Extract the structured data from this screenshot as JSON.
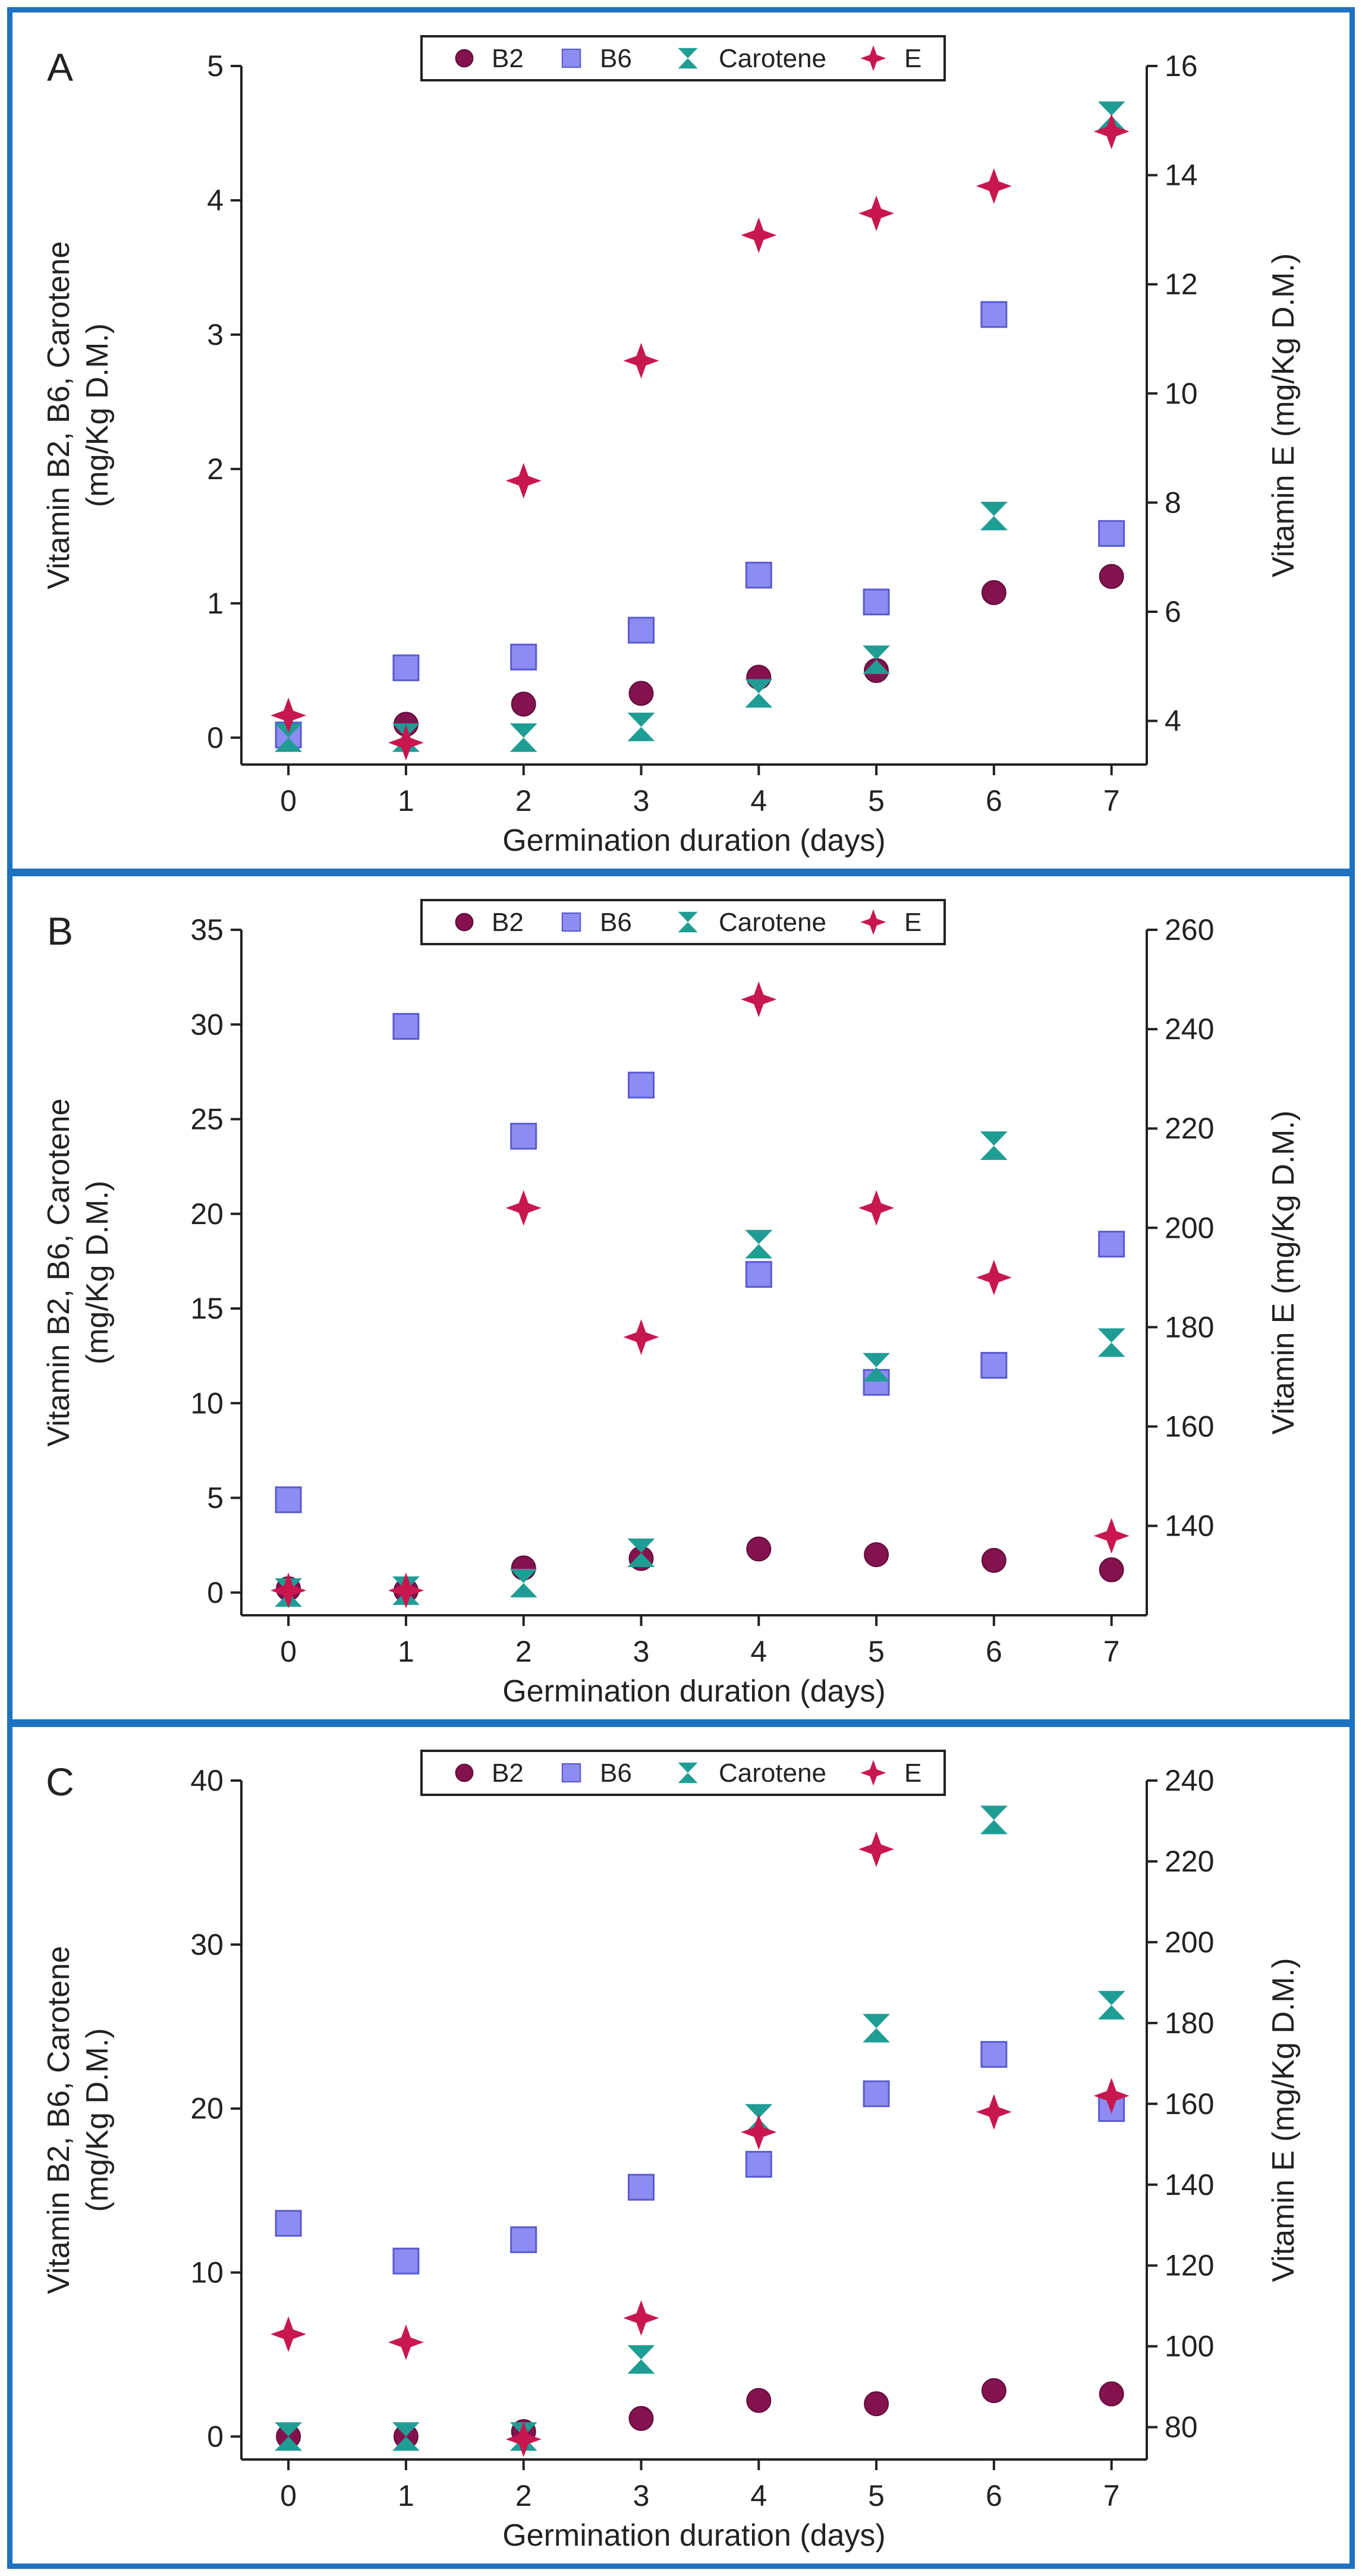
{
  "colors": {
    "frame": "#1d72c2",
    "B2": "#84124f",
    "B6": "#8c8cf2",
    "B6_edge": "#5a5ad0",
    "Carotene": "#1f9d95",
    "E": "#c8174f"
  },
  "legend": [
    "B2",
    "B6",
    "Carotene",
    "E"
  ],
  "chart_data": [
    {
      "type": "scatter",
      "panel_label": "A",
      "xlabel": "Germination duration (days)",
      "ylabel_line1": "Vitamin B2, B6, Carotene",
      "ylabel_line2": "(mg/Kg D.M.)",
      "ylabel_right": "Vitamin E (mg/Kg D.M.)",
      "x": [
        0,
        1,
        2,
        3,
        4,
        5,
        6,
        7
      ],
      "xlim": [
        -0.4,
        7.3
      ],
      "ylim": [
        -0.2,
        5
      ],
      "y2lim": [
        3.2,
        16
      ],
      "x_ticks": [
        "0",
        "1",
        "2",
        "3",
        "4",
        "5",
        "6",
        "7"
      ],
      "y_ticks": [
        "0",
        "1",
        "2",
        "3",
        "4",
        "5"
      ],
      "y2_ticks": [
        "4",
        "6",
        "8",
        "10",
        "12",
        "14",
        "16"
      ],
      "legend_position": "top-center",
      "series": [
        {
          "name": "B2",
          "axis": "left",
          "values": [
            0.02,
            0.1,
            0.25,
            0.33,
            0.45,
            0.5,
            1.08,
            1.2
          ]
        },
        {
          "name": "B6",
          "axis": "left",
          "values": [
            0.02,
            0.52,
            0.6,
            0.8,
            1.21,
            1.01,
            3.15,
            1.52
          ]
        },
        {
          "name": "Carotene",
          "axis": "left",
          "values": [
            0.0,
            0.0,
            0.0,
            0.08,
            0.33,
            0.58,
            1.65,
            4.63
          ]
        },
        {
          "name": "E",
          "axis": "right",
          "values": [
            4.1,
            3.6,
            8.4,
            10.6,
            12.9,
            13.3,
            13.8,
            14.8
          ]
        }
      ]
    },
    {
      "type": "scatter",
      "panel_label": "B",
      "xlabel": "Germination duration (days)",
      "ylabel_line1": "Vitamin B2, B6, Carotene",
      "ylabel_line2": "(mg/Kg D.M.)",
      "ylabel_right": "Vitamin E (mg/Kg D.M.)",
      "x": [
        0,
        1,
        2,
        3,
        4,
        5,
        6,
        7
      ],
      "xlim": [
        -0.4,
        7.3
      ],
      "ylim": [
        -1.2,
        35
      ],
      "y2lim": [
        122,
        260
      ],
      "x_ticks": [
        "0",
        "1",
        "2",
        "3",
        "4",
        "5",
        "6",
        "7"
      ],
      "y_ticks": [
        "0",
        "5",
        "10",
        "15",
        "20",
        "25",
        "30",
        "35"
      ],
      "y2_ticks": [
        "140",
        "160",
        "180",
        "200",
        "220",
        "240",
        "260"
      ],
      "legend_position": "top-center",
      "series": [
        {
          "name": "B2",
          "axis": "left",
          "values": [
            0.2,
            0.1,
            1.3,
            1.8,
            2.3,
            2.0,
            1.7,
            1.2
          ]
        },
        {
          "name": "B6",
          "axis": "left",
          "values": [
            4.9,
            29.9,
            24.1,
            26.8,
            16.8,
            11.1,
            12.0,
            18.4
          ]
        },
        {
          "name": "Carotene",
          "axis": "left",
          "values": [
            0.0,
            0.1,
            0.5,
            2.1,
            18.4,
            11.9,
            23.6,
            13.2
          ]
        },
        {
          "name": "E",
          "axis": "right",
          "values": [
            127,
            127,
            204,
            178,
            246,
            204,
            190,
            138
          ]
        }
      ]
    },
    {
      "type": "scatter",
      "panel_label": "C",
      "xlabel": "Germination duration (days)",
      "ylabel_line1": "Vitamin B2, B6, Carotene",
      "ylabel_line2": "(mg/Kg D.M.)",
      "ylabel_right": "Vitamin E (mg/Kg D.M.)",
      "x": [
        0,
        1,
        2,
        3,
        4,
        5,
        6,
        7
      ],
      "xlim": [
        -0.4,
        7.3
      ],
      "ylim": [
        -1.4,
        40
      ],
      "y2lim": [
        72,
        240
      ],
      "x_ticks": [
        "0",
        "1",
        "2",
        "3",
        "4",
        "5",
        "6",
        "7"
      ],
      "y_ticks": [
        "0",
        "10",
        "20",
        "30",
        "40"
      ],
      "y2_ticks": [
        "80",
        "100",
        "120",
        "140",
        "160",
        "180",
        "200",
        "220",
        "240"
      ],
      "legend_position": "top-center",
      "series": [
        {
          "name": "B2",
          "axis": "left",
          "values": [
            0.0,
            0.0,
            0.3,
            1.1,
            2.2,
            2.0,
            2.8,
            2.6
          ]
        },
        {
          "name": "B6",
          "axis": "left",
          "values": [
            13.0,
            10.7,
            12.0,
            15.2,
            16.6,
            20.9,
            23.3,
            20.0
          ]
        },
        {
          "name": "Carotene",
          "axis": "left",
          "values": [
            0.0,
            0.0,
            0.0,
            4.7,
            19.4,
            24.9,
            37.6,
            26.3
          ]
        },
        {
          "name": "E",
          "axis": "right",
          "values": [
            103,
            101,
            77,
            107,
            153,
            223,
            158,
            162
          ]
        }
      ]
    }
  ]
}
